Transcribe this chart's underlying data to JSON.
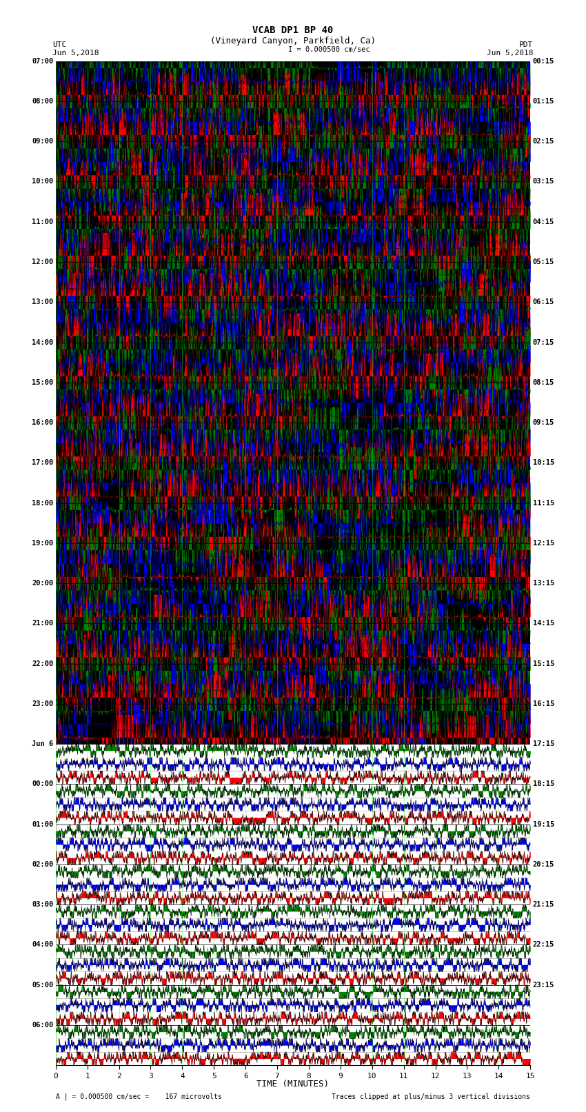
{
  "title_line1": "VCAB DP1 BP 40",
  "title_line2": "(Vineyard Canyon, Parkfield, Ca)",
  "scale_text": "I = 0.000500 cm/sec",
  "left_label": "UTC",
  "left_date": "Jun 5,2018",
  "right_label": "PDT",
  "right_date": "Jun 5,2018",
  "xlabel": "TIME (MINUTES)",
  "bottom_left_text": "A | = 0.000500 cm/sec =    167 microvolts",
  "bottom_right_text": "Traces clipped at plus/minus 3 vertical divisions",
  "utc_times": [
    "07:00",
    "08:00",
    "09:00",
    "10:00",
    "11:00",
    "12:00",
    "13:00",
    "14:00",
    "15:00",
    "16:00",
    "17:00",
    "18:00",
    "19:00",
    "20:00",
    "21:00",
    "22:00",
    "23:00",
    "Jun 6",
    "00:00",
    "01:00",
    "02:00",
    "03:00",
    "04:00",
    "05:00",
    "06:00"
  ],
  "pdt_times": [
    "00:15",
    "01:15",
    "02:15",
    "03:15",
    "04:15",
    "05:15",
    "06:15",
    "07:15",
    "08:15",
    "09:15",
    "10:15",
    "11:15",
    "12:15",
    "13:15",
    "14:15",
    "15:15",
    "16:15",
    "17:15",
    "18:15",
    "19:15",
    "20:15",
    "21:15",
    "22:15",
    "23:15"
  ],
  "n_rows": 25,
  "xmin": 0,
  "xmax": 15,
  "background": "#ffffff",
  "figsize": [
    8.5,
    16.13
  ],
  "dpi": 100,
  "n_high": 17,
  "high_amplitude": 3.5,
  "low_amplitude": 0.85,
  "n_pts": 2000
}
